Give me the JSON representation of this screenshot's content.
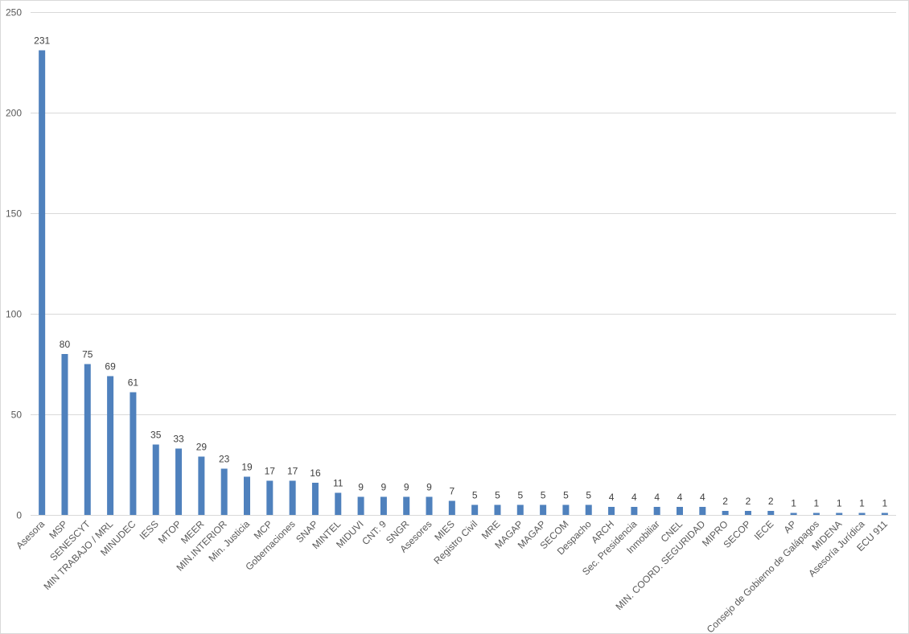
{
  "chart_data": {
    "type": "bar",
    "title": "",
    "xlabel": "",
    "ylabel": "",
    "ylim": [
      0,
      250
    ],
    "yticks": [
      0,
      50,
      100,
      150,
      200,
      250
    ],
    "grid": true,
    "legend": "none",
    "bar_color": "#4f81bd",
    "categories": [
      "Asesora",
      "MSP",
      "SENESCYT",
      "MIN TRABAJO / MRL",
      "MINUDEC",
      "IESS",
      "MTOP",
      "MEER",
      "MIN.INTERIOR",
      "Min. Justicia",
      "MCP",
      "Gobernaciones",
      "SNAP",
      "MINTEL",
      "MIDUVI",
      "CNT: 9",
      "SNGR",
      "Asesores",
      "MIES",
      "Registro Civil",
      "MRE",
      "MAGAP",
      "MAGAP",
      "SECOM",
      "Despacho",
      "ARCH",
      "Sec. Presidencia",
      "Inmobiliar",
      "CNEL",
      "MIN. COORD. SEGURIDAD",
      "MIPRO",
      "SECOP",
      "IECE",
      "AP",
      "Consejo de Gobierno de Galápagos",
      "MIDENA",
      "Asesoría Jurídica",
      "ECU 911"
    ],
    "values": [
      231,
      80,
      75,
      69,
      61,
      35,
      33,
      29,
      23,
      19,
      17,
      17,
      16,
      11,
      9,
      9,
      9,
      9,
      7,
      5,
      5,
      5,
      5,
      5,
      5,
      4,
      4,
      4,
      4,
      4,
      2,
      2,
      2,
      1,
      1,
      1,
      1,
      1
    ]
  }
}
